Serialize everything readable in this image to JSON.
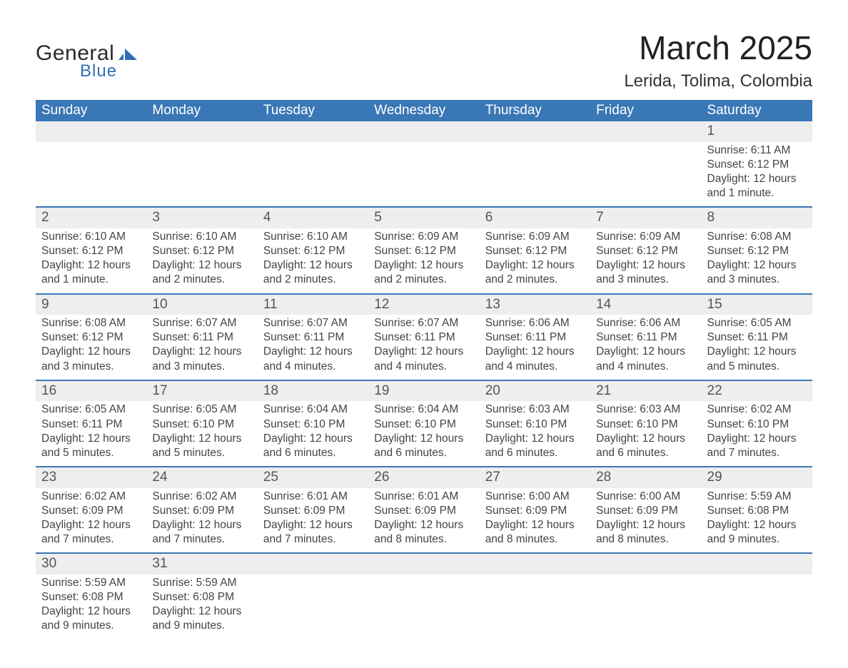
{
  "brand": {
    "general": "General",
    "blue": "Blue",
    "shape_color": "#2e6fb3"
  },
  "title": {
    "month": "March 2025",
    "location": "Lerida, Tolima, Colombia"
  },
  "colors": {
    "header_bg": "#3a77b6",
    "header_text": "#ffffff",
    "daynum_bg": "#eeeeee",
    "row_divider": "#3a77b6",
    "body_text": "#444444",
    "page_bg": "#ffffff"
  },
  "typography": {
    "month_title_pt": 46,
    "location_pt": 24,
    "weekday_header_pt": 19,
    "daynum_pt": 19,
    "cell_pt": 15.5
  },
  "calendar": {
    "type": "table",
    "columns": [
      "Sunday",
      "Monday",
      "Tuesday",
      "Wednesday",
      "Thursday",
      "Friday",
      "Saturday"
    ],
    "weeks": [
      [
        null,
        null,
        null,
        null,
        null,
        null,
        {
          "day": "1",
          "sunrise": "Sunrise: 6:11 AM",
          "sunset": "Sunset: 6:12 PM",
          "daylight1": "Daylight: 12 hours",
          "daylight2": "and 1 minute."
        }
      ],
      [
        {
          "day": "2",
          "sunrise": "Sunrise: 6:10 AM",
          "sunset": "Sunset: 6:12 PM",
          "daylight1": "Daylight: 12 hours",
          "daylight2": "and 1 minute."
        },
        {
          "day": "3",
          "sunrise": "Sunrise: 6:10 AM",
          "sunset": "Sunset: 6:12 PM",
          "daylight1": "Daylight: 12 hours",
          "daylight2": "and 2 minutes."
        },
        {
          "day": "4",
          "sunrise": "Sunrise: 6:10 AM",
          "sunset": "Sunset: 6:12 PM",
          "daylight1": "Daylight: 12 hours",
          "daylight2": "and 2 minutes."
        },
        {
          "day": "5",
          "sunrise": "Sunrise: 6:09 AM",
          "sunset": "Sunset: 6:12 PM",
          "daylight1": "Daylight: 12 hours",
          "daylight2": "and 2 minutes."
        },
        {
          "day": "6",
          "sunrise": "Sunrise: 6:09 AM",
          "sunset": "Sunset: 6:12 PM",
          "daylight1": "Daylight: 12 hours",
          "daylight2": "and 2 minutes."
        },
        {
          "day": "7",
          "sunrise": "Sunrise: 6:09 AM",
          "sunset": "Sunset: 6:12 PM",
          "daylight1": "Daylight: 12 hours",
          "daylight2": "and 3 minutes."
        },
        {
          "day": "8",
          "sunrise": "Sunrise: 6:08 AM",
          "sunset": "Sunset: 6:12 PM",
          "daylight1": "Daylight: 12 hours",
          "daylight2": "and 3 minutes."
        }
      ],
      [
        {
          "day": "9",
          "sunrise": "Sunrise: 6:08 AM",
          "sunset": "Sunset: 6:12 PM",
          "daylight1": "Daylight: 12 hours",
          "daylight2": "and 3 minutes."
        },
        {
          "day": "10",
          "sunrise": "Sunrise: 6:07 AM",
          "sunset": "Sunset: 6:11 PM",
          "daylight1": "Daylight: 12 hours",
          "daylight2": "and 3 minutes."
        },
        {
          "day": "11",
          "sunrise": "Sunrise: 6:07 AM",
          "sunset": "Sunset: 6:11 PM",
          "daylight1": "Daylight: 12 hours",
          "daylight2": "and 4 minutes."
        },
        {
          "day": "12",
          "sunrise": "Sunrise: 6:07 AM",
          "sunset": "Sunset: 6:11 PM",
          "daylight1": "Daylight: 12 hours",
          "daylight2": "and 4 minutes."
        },
        {
          "day": "13",
          "sunrise": "Sunrise: 6:06 AM",
          "sunset": "Sunset: 6:11 PM",
          "daylight1": "Daylight: 12 hours",
          "daylight2": "and 4 minutes."
        },
        {
          "day": "14",
          "sunrise": "Sunrise: 6:06 AM",
          "sunset": "Sunset: 6:11 PM",
          "daylight1": "Daylight: 12 hours",
          "daylight2": "and 4 minutes."
        },
        {
          "day": "15",
          "sunrise": "Sunrise: 6:05 AM",
          "sunset": "Sunset: 6:11 PM",
          "daylight1": "Daylight: 12 hours",
          "daylight2": "and 5 minutes."
        }
      ],
      [
        {
          "day": "16",
          "sunrise": "Sunrise: 6:05 AM",
          "sunset": "Sunset: 6:11 PM",
          "daylight1": "Daylight: 12 hours",
          "daylight2": "and 5 minutes."
        },
        {
          "day": "17",
          "sunrise": "Sunrise: 6:05 AM",
          "sunset": "Sunset: 6:10 PM",
          "daylight1": "Daylight: 12 hours",
          "daylight2": "and 5 minutes."
        },
        {
          "day": "18",
          "sunrise": "Sunrise: 6:04 AM",
          "sunset": "Sunset: 6:10 PM",
          "daylight1": "Daylight: 12 hours",
          "daylight2": "and 6 minutes."
        },
        {
          "day": "19",
          "sunrise": "Sunrise: 6:04 AM",
          "sunset": "Sunset: 6:10 PM",
          "daylight1": "Daylight: 12 hours",
          "daylight2": "and 6 minutes."
        },
        {
          "day": "20",
          "sunrise": "Sunrise: 6:03 AM",
          "sunset": "Sunset: 6:10 PM",
          "daylight1": "Daylight: 12 hours",
          "daylight2": "and 6 minutes."
        },
        {
          "day": "21",
          "sunrise": "Sunrise: 6:03 AM",
          "sunset": "Sunset: 6:10 PM",
          "daylight1": "Daylight: 12 hours",
          "daylight2": "and 6 minutes."
        },
        {
          "day": "22",
          "sunrise": "Sunrise: 6:02 AM",
          "sunset": "Sunset: 6:10 PM",
          "daylight1": "Daylight: 12 hours",
          "daylight2": "and 7 minutes."
        }
      ],
      [
        {
          "day": "23",
          "sunrise": "Sunrise: 6:02 AM",
          "sunset": "Sunset: 6:09 PM",
          "daylight1": "Daylight: 12 hours",
          "daylight2": "and 7 minutes."
        },
        {
          "day": "24",
          "sunrise": "Sunrise: 6:02 AM",
          "sunset": "Sunset: 6:09 PM",
          "daylight1": "Daylight: 12 hours",
          "daylight2": "and 7 minutes."
        },
        {
          "day": "25",
          "sunrise": "Sunrise: 6:01 AM",
          "sunset": "Sunset: 6:09 PM",
          "daylight1": "Daylight: 12 hours",
          "daylight2": "and 7 minutes."
        },
        {
          "day": "26",
          "sunrise": "Sunrise: 6:01 AM",
          "sunset": "Sunset: 6:09 PM",
          "daylight1": "Daylight: 12 hours",
          "daylight2": "and 8 minutes."
        },
        {
          "day": "27",
          "sunrise": "Sunrise: 6:00 AM",
          "sunset": "Sunset: 6:09 PM",
          "daylight1": "Daylight: 12 hours",
          "daylight2": "and 8 minutes."
        },
        {
          "day": "28",
          "sunrise": "Sunrise: 6:00 AM",
          "sunset": "Sunset: 6:09 PM",
          "daylight1": "Daylight: 12 hours",
          "daylight2": "and 8 minutes."
        },
        {
          "day": "29",
          "sunrise": "Sunrise: 5:59 AM",
          "sunset": "Sunset: 6:08 PM",
          "daylight1": "Daylight: 12 hours",
          "daylight2": "and 9 minutes."
        }
      ],
      [
        {
          "day": "30",
          "sunrise": "Sunrise: 5:59 AM",
          "sunset": "Sunset: 6:08 PM",
          "daylight1": "Daylight: 12 hours",
          "daylight2": "and 9 minutes."
        },
        {
          "day": "31",
          "sunrise": "Sunrise: 5:59 AM",
          "sunset": "Sunset: 6:08 PM",
          "daylight1": "Daylight: 12 hours",
          "daylight2": "and 9 minutes."
        },
        null,
        null,
        null,
        null,
        null
      ]
    ]
  }
}
